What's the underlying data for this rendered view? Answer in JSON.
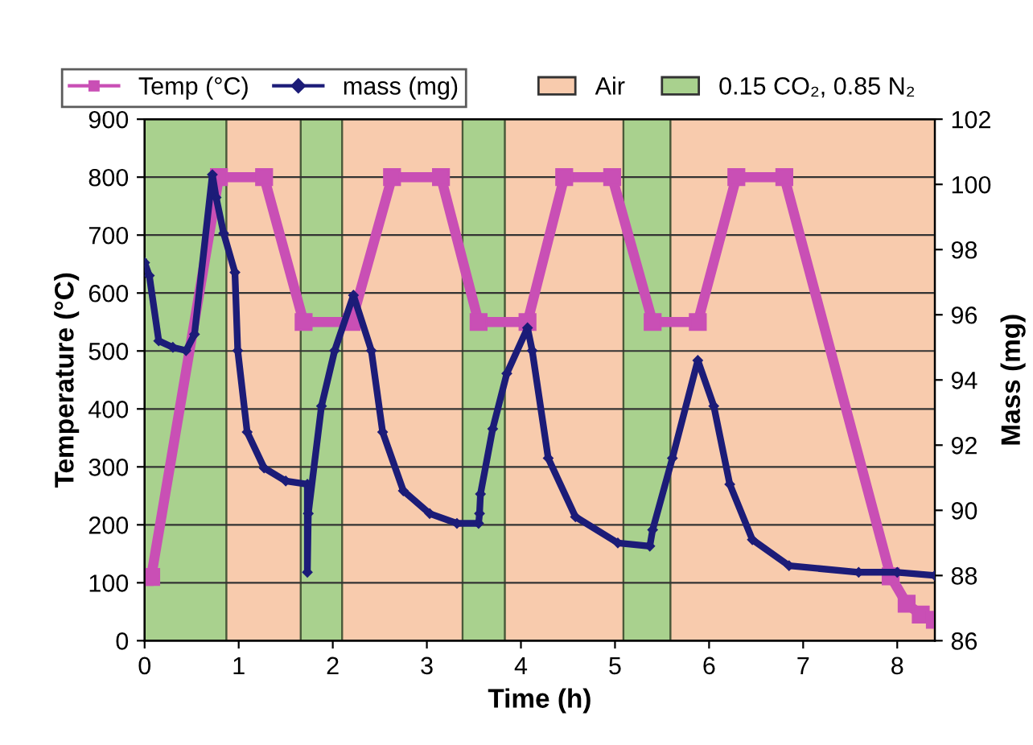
{
  "chart_data": {
    "type": "line",
    "xlabel": "Time (h)",
    "ylabel": "Temperature (°C)",
    "y2label": "Mass (mg)",
    "xlim": [
      0,
      8.4
    ],
    "xticks": [
      0,
      1,
      2,
      3,
      4,
      5,
      6,
      7,
      8
    ],
    "ylim": [
      0,
      900
    ],
    "yticks": [
      0,
      100,
      200,
      300,
      400,
      500,
      600,
      700,
      800,
      900
    ],
    "y2lim": [
      86,
      102
    ],
    "y2ticks": [
      86,
      88,
      90,
      92,
      94,
      96,
      98,
      100,
      102
    ],
    "grid": "y",
    "legend": "top",
    "series": [
      {
        "name": "Temp (°C)",
        "color": "#c94fb5",
        "marker": "square",
        "line_style": "solid",
        "x": [
          0,
          0.07,
          0.79,
          1.27,
          1.69,
          2.2,
          2.63,
          3.15,
          3.55,
          4.07,
          4.46,
          4.97,
          5.4,
          5.88,
          6.29,
          6.8,
          7.93,
          8.1,
          8.25,
          8.4
        ],
        "values": [
          110,
          110,
          800,
          800,
          550,
          550,
          800,
          800,
          550,
          550,
          800,
          800,
          550,
          550,
          800,
          800,
          111,
          64,
          45,
          36
        ]
      },
      {
        "name": "mass (mg)",
        "color": "#1c1c78",
        "axis": "y2",
        "marker": "diamond",
        "line_style": "solid",
        "x": [
          0,
          0.05,
          0.15,
          0.3,
          0.44,
          0.53,
          0.72,
          0.76,
          0.84,
          0.96,
          0.99,
          1.09,
          1.27,
          1.5,
          1.73,
          1.73,
          1.74,
          1.88,
          2.02,
          2.22,
          2.41,
          2.53,
          2.75,
          3.03,
          3.32,
          3.55,
          3.56,
          3.57,
          3.7,
          3.85,
          4.07,
          4.12,
          4.29,
          4.58,
          5.03,
          5.37,
          5.4,
          5.61,
          5.88,
          6.05,
          6.22,
          6.46,
          6.85,
          7.59,
          8.0,
          8.4
        ],
        "values": [
          97.6,
          97.2,
          95.2,
          95.0,
          94.9,
          95.4,
          100.3,
          99.6,
          98.5,
          97.3,
          94.9,
          92.4,
          91.3,
          90.9,
          90.8,
          88.1,
          89.9,
          93.2,
          94.9,
          96.6,
          94.9,
          92.4,
          90.6,
          89.9,
          89.6,
          89.6,
          89.9,
          90.5,
          92.5,
          94.2,
          95.6,
          94.9,
          91.6,
          89.8,
          89.0,
          88.9,
          89.4,
          91.6,
          94.6,
          93.2,
          90.8,
          89.1,
          88.3,
          88.1,
          88.1,
          88.0
        ]
      }
    ],
    "bands": [
      {
        "axis": "x",
        "from": 0,
        "to": 0.87,
        "color": "#a9d18e",
        "label": "0.15 CO₂, 0.85 N₂"
      },
      {
        "axis": "x",
        "from": 0.87,
        "to": 1.66,
        "color": "#f8cbad"
      },
      {
        "axis": "x",
        "from": 1.66,
        "to": 2.1,
        "color": "#a9d18e"
      },
      {
        "axis": "x",
        "from": 2.1,
        "to": 3.38,
        "color": "#f8cbad"
      },
      {
        "axis": "x",
        "from": 3.38,
        "to": 3.83,
        "color": "#a9d18e"
      },
      {
        "axis": "x",
        "from": 3.83,
        "to": 5.09,
        "color": "#f8cbad"
      },
      {
        "axis": "x",
        "from": 5.09,
        "to": 5.59,
        "color": "#a9d18e"
      },
      {
        "axis": "x",
        "from": 5.59,
        "to": 8.4,
        "color": "#f8cbad",
        "label": "Air"
      }
    ]
  }
}
